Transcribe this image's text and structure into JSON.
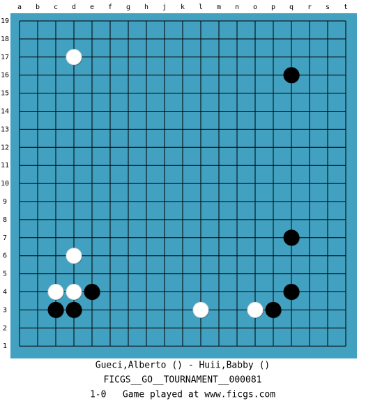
{
  "board": {
    "columns": [
      "a",
      "b",
      "c",
      "d",
      "e",
      "f",
      "g",
      "h",
      "j",
      "k",
      "l",
      "m",
      "n",
      "o",
      "p",
      "q",
      "r",
      "s",
      "t"
    ],
    "rows": [
      "19",
      "18",
      "17",
      "16",
      "15",
      "14",
      "13",
      "12",
      "11",
      "10",
      "9",
      "8",
      "7",
      "6",
      "5",
      "4",
      "3",
      "2",
      "1"
    ],
    "stones": [
      {
        "color": "white",
        "point": "d17"
      },
      {
        "color": "black",
        "point": "q16"
      },
      {
        "color": "white",
        "point": "d6"
      },
      {
        "color": "black",
        "point": "q7"
      },
      {
        "color": "white",
        "point": "c4"
      },
      {
        "color": "white",
        "point": "d4"
      },
      {
        "color": "black",
        "point": "e4"
      },
      {
        "color": "black",
        "point": "q4"
      },
      {
        "color": "black",
        "point": "c3"
      },
      {
        "color": "black",
        "point": "d3"
      },
      {
        "color": "white",
        "point": "l3"
      },
      {
        "color": "white",
        "point": "o3"
      },
      {
        "color": "black",
        "point": "p3"
      }
    ]
  },
  "footer": {
    "players": "Gueci,Alberto () - Huii,Babby ()",
    "event": "FICGS__GO__TOURNAMENT__000081",
    "result": "1-0   Game played at www.ficgs.com"
  }
}
